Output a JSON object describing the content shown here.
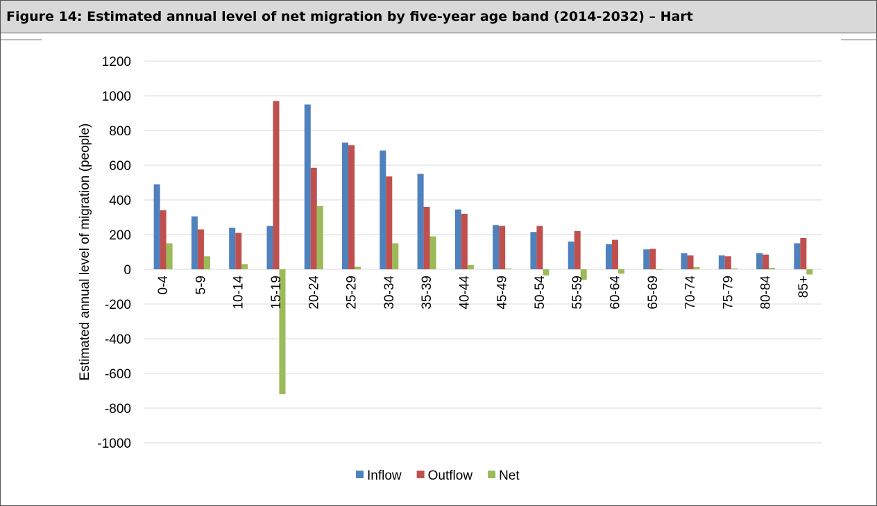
{
  "header": {
    "title": "Figure 14: Estimated annual level of net migration by five-year age band (2014-2032) – Hart"
  },
  "colors": {
    "inflow": "#4f81bd",
    "outflow": "#c0504d",
    "net": "#9bbb59",
    "grid": "#d9d9d9"
  },
  "chart_data": {
    "type": "bar",
    "title": "",
    "xlabel": "",
    "ylabel": "Estimated annual level of migration (people)",
    "ylim": [
      -1000,
      1200
    ],
    "yticks": [
      1200,
      1000,
      800,
      600,
      400,
      200,
      0,
      -200,
      -400,
      -600,
      -800,
      -1000
    ],
    "grid": true,
    "legend_position": "bottom",
    "categories": [
      "0-4",
      "5-9",
      "10-14",
      "15-19",
      "20-24",
      "25-29",
      "30-34",
      "35-39",
      "40-44",
      "45-49",
      "50-54",
      "55-59",
      "60-64",
      "65-69",
      "70-74",
      "75-79",
      "80-84",
      "85+"
    ],
    "series": [
      {
        "name": "Inflow",
        "values": [
          490,
          305,
          240,
          250,
          950,
          730,
          685,
          550,
          345,
          255,
          215,
          160,
          145,
          115,
          93,
          80,
          93,
          150
        ]
      },
      {
        "name": "Outflow",
        "values": [
          340,
          230,
          210,
          970,
          585,
          715,
          535,
          360,
          320,
          250,
          250,
          220,
          170,
          118,
          80,
          75,
          85,
          180
        ]
      },
      {
        "name": "Net",
        "values": [
          150,
          75,
          30,
          -720,
          365,
          15,
          150,
          190,
          25,
          5,
          -35,
          -60,
          -25,
          -3,
          13,
          5,
          8,
          -30
        ]
      }
    ]
  }
}
